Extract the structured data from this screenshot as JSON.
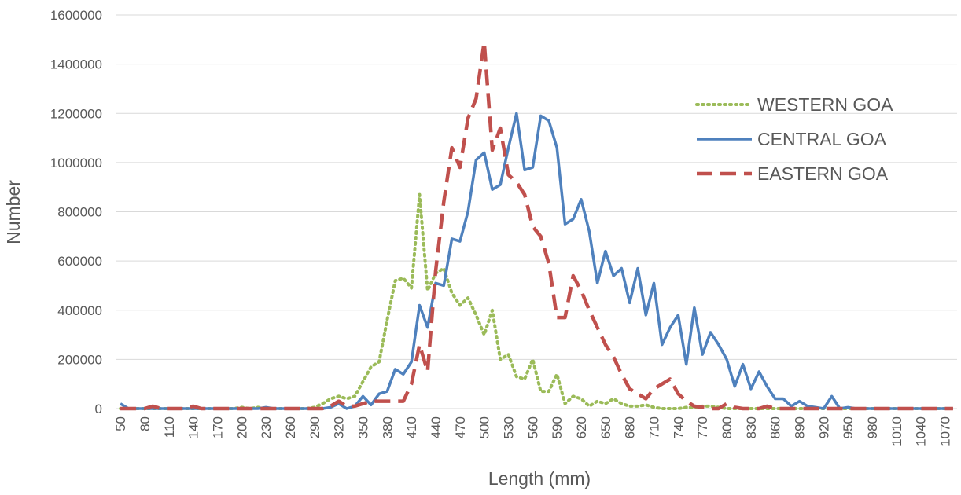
{
  "chart_data": {
    "type": "line",
    "xlabel": "Length (mm)",
    "ylabel": "Number",
    "ylim": [
      0,
      1600000
    ],
    "yticks": [
      0,
      200000,
      400000,
      600000,
      800000,
      1000000,
      1200000,
      1400000,
      1600000
    ],
    "ytick_labels": [
      "0",
      "200000",
      "400000",
      "600000",
      "800000",
      "1000000",
      "1200000",
      "1400000",
      "1600000"
    ],
    "xtick_labels": [
      "50",
      "80",
      "110",
      "140",
      "170",
      "200",
      "230",
      "260",
      "290",
      "320",
      "350",
      "380",
      "410",
      "440",
      "470",
      "500",
      "530",
      "560",
      "590",
      "620",
      "650",
      "680",
      "710",
      "740",
      "770",
      "800",
      "830",
      "860",
      "890",
      "920",
      "950",
      "980",
      "1010",
      "1040",
      "1070"
    ],
    "grid": "horizontal",
    "legend_position": "right",
    "x": [
      50,
      60,
      70,
      80,
      90,
      100,
      110,
      120,
      130,
      140,
      150,
      160,
      170,
      180,
      190,
      200,
      210,
      220,
      230,
      240,
      250,
      260,
      270,
      280,
      290,
      300,
      310,
      320,
      330,
      340,
      350,
      360,
      370,
      380,
      390,
      400,
      410,
      420,
      430,
      440,
      450,
      460,
      470,
      480,
      490,
      500,
      510,
      520,
      530,
      540,
      550,
      560,
      570,
      580,
      590,
      600,
      610,
      620,
      630,
      640,
      650,
      660,
      670,
      680,
      690,
      700,
      710,
      720,
      730,
      740,
      750,
      760,
      770,
      780,
      790,
      800,
      810,
      820,
      830,
      840,
      850,
      860,
      870,
      880,
      890,
      900,
      910,
      920,
      930,
      940,
      950,
      960,
      970,
      980,
      990,
      1000,
      1010,
      1020,
      1030,
      1040,
      1050,
      1060,
      1070,
      1080
    ],
    "series": [
      {
        "name": "WESTERN GOA",
        "color": "#9BBB59",
        "dash": "dotted",
        "values": [
          0,
          0,
          0,
          0,
          0,
          0,
          0,
          0,
          0,
          0,
          0,
          0,
          0,
          0,
          0,
          5000,
          0,
          5000,
          0,
          0,
          0,
          0,
          0,
          0,
          5000,
          20000,
          40000,
          50000,
          40000,
          50000,
          110000,
          170000,
          190000,
          360000,
          520000,
          530000,
          490000,
          870000,
          480000,
          550000,
          570000,
          470000,
          420000,
          450000,
          380000,
          300000,
          400000,
          200000,
          220000,
          130000,
          120000,
          200000,
          70000,
          70000,
          140000,
          20000,
          50000,
          40000,
          10000,
          30000,
          20000,
          40000,
          20000,
          10000,
          10000,
          15000,
          5000,
          0,
          0,
          0,
          5000,
          5000,
          10000,
          10000,
          5000,
          0,
          0,
          0,
          0,
          0,
          0,
          0,
          0,
          0,
          0,
          0,
          0,
          0,
          0,
          0,
          0,
          0,
          0,
          0,
          0,
          0,
          0,
          0,
          0,
          0,
          0,
          0,
          0,
          0
        ]
      },
      {
        "name": "CENTRAL GOA",
        "color": "#4F81BD",
        "dash": "solid",
        "values": [
          20000,
          0,
          0,
          0,
          0,
          0,
          0,
          0,
          0,
          0,
          0,
          0,
          0,
          0,
          0,
          0,
          0,
          0,
          5000,
          0,
          0,
          0,
          0,
          0,
          0,
          0,
          5000,
          20000,
          0,
          10000,
          50000,
          15000,
          60000,
          70000,
          160000,
          140000,
          190000,
          420000,
          330000,
          510000,
          500000,
          690000,
          680000,
          800000,
          1010000,
          1040000,
          890000,
          910000,
          1060000,
          1200000,
          970000,
          980000,
          1190000,
          1170000,
          1060000,
          750000,
          770000,
          850000,
          720000,
          510000,
          640000,
          540000,
          570000,
          430000,
          570000,
          380000,
          510000,
          260000,
          330000,
          380000,
          180000,
          410000,
          220000,
          310000,
          260000,
          200000,
          90000,
          180000,
          80000,
          150000,
          90000,
          40000,
          40000,
          10000,
          30000,
          10000,
          5000,
          0,
          50000,
          0,
          5000,
          0,
          0,
          0,
          0,
          0,
          0,
          0,
          0,
          0,
          0,
          0,
          0,
          0
        ]
      },
      {
        "name": "EASTERN GOA",
        "color": "#C0504D",
        "dash": "dashed",
        "values": [
          0,
          0,
          0,
          0,
          10000,
          0,
          0,
          0,
          0,
          10000,
          0,
          0,
          0,
          0,
          0,
          0,
          0,
          0,
          0,
          0,
          0,
          0,
          0,
          0,
          0,
          0,
          10000,
          30000,
          10000,
          10000,
          20000,
          30000,
          30000,
          30000,
          30000,
          30000,
          100000,
          260000,
          150000,
          560000,
          840000,
          1060000,
          980000,
          1180000,
          1260000,
          1490000,
          1050000,
          1140000,
          950000,
          920000,
          870000,
          740000,
          700000,
          590000,
          370000,
          370000,
          540000,
          480000,
          400000,
          330000,
          260000,
          210000,
          140000,
          80000,
          60000,
          40000,
          80000,
          100000,
          120000,
          60000,
          30000,
          10000,
          5000,
          0,
          0,
          20000,
          5000,
          0,
          0,
          0,
          10000,
          0,
          0,
          0,
          0,
          0,
          0,
          0,
          0,
          0,
          0,
          0,
          0,
          0,
          0,
          0,
          0,
          0,
          0,
          0,
          0,
          0,
          0,
          0
        ]
      }
    ]
  }
}
